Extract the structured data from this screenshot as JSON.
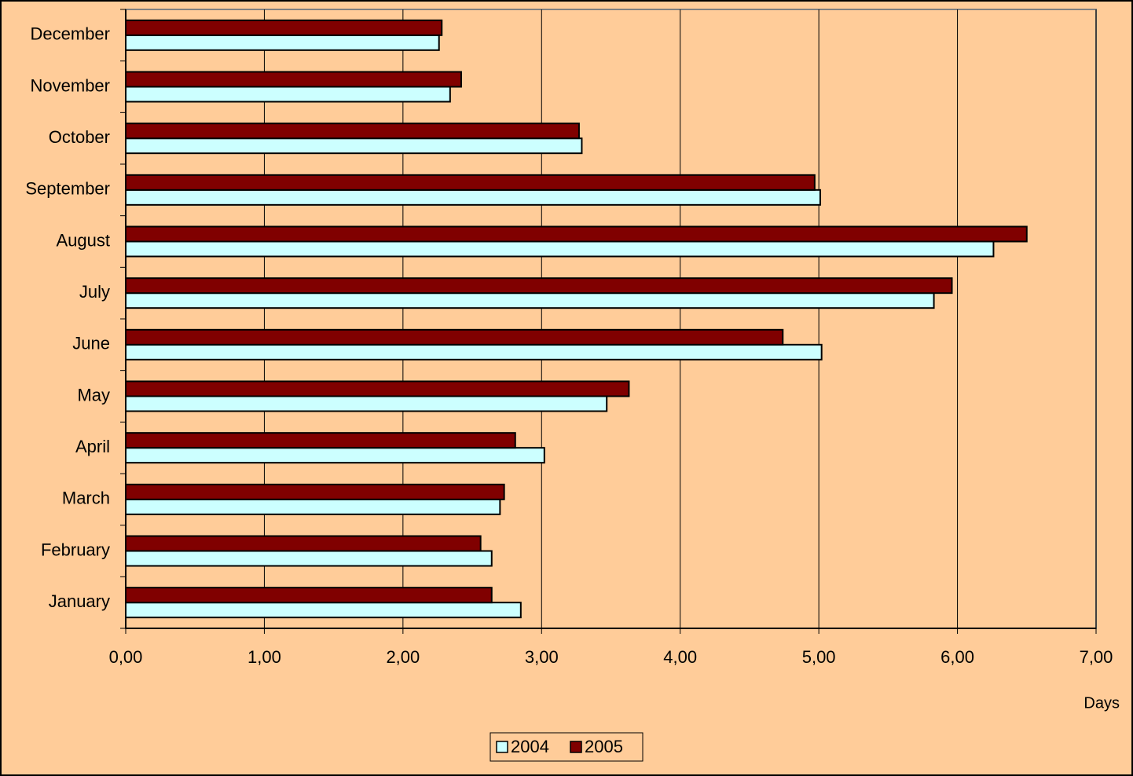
{
  "chart_data": {
    "type": "bar",
    "orientation": "horizontal",
    "categories": [
      "January",
      "February",
      "March",
      "April",
      "May",
      "June",
      "July",
      "August",
      "September",
      "October",
      "November",
      "December"
    ],
    "series": [
      {
        "name": "2004",
        "color": "#ccffff",
        "values": [
          2.85,
          2.64,
          2.7,
          3.02,
          3.47,
          5.02,
          5.83,
          6.26,
          5.01,
          3.29,
          2.34,
          2.26
        ]
      },
      {
        "name": "2005",
        "color": "#800000",
        "values": [
          2.64,
          2.56,
          2.73,
          2.81,
          3.63,
          4.74,
          5.96,
          6.5,
          4.97,
          3.27,
          2.42,
          2.28
        ]
      }
    ],
    "xlabel": "Days",
    "xlim": [
      0,
      7
    ],
    "xticks": [
      {
        "value": 0,
        "label": "0,00"
      },
      {
        "value": 1,
        "label": "1,00"
      },
      {
        "value": 2,
        "label": "2,00"
      },
      {
        "value": 3,
        "label": "3,00"
      },
      {
        "value": 4,
        "label": "4,00"
      },
      {
        "value": 5,
        "label": "5,00"
      },
      {
        "value": 6,
        "label": "6,00"
      },
      {
        "value": 7,
        "label": "7,00"
      }
    ],
    "grid": true,
    "legend": "bottom"
  }
}
